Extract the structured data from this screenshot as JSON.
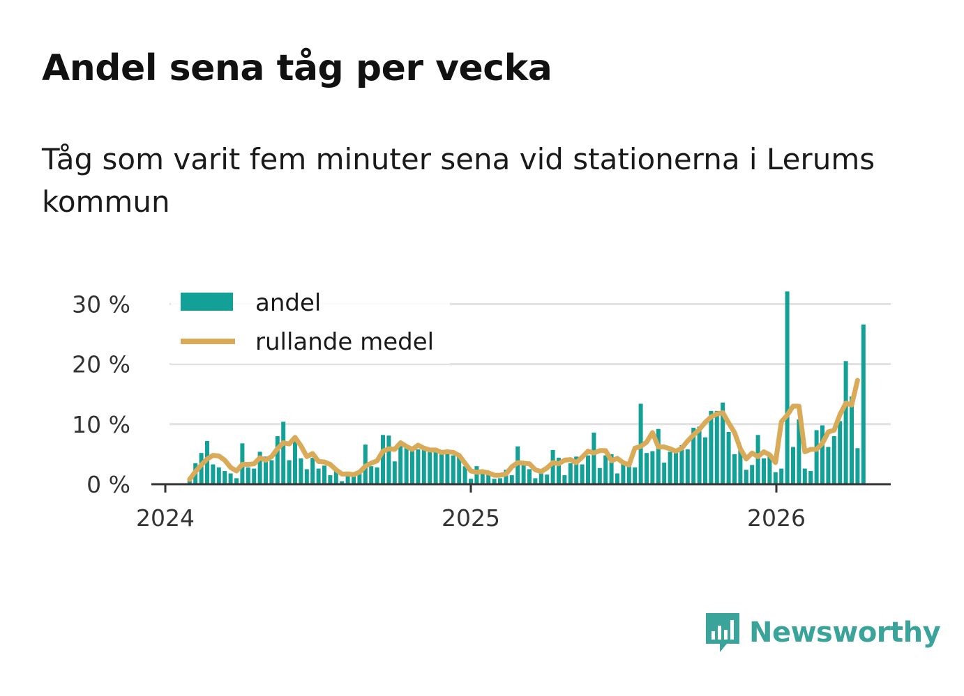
{
  "title": "Andel sena tåg per vecka",
  "subtitle": "Tåg som varit fem minuter sena vid stationerna i Lerums kommun",
  "brand": "Newsworthy",
  "colors": {
    "bar": "#13a197",
    "line": "#d9ab59",
    "grid": "#e1e1e1",
    "axis": "#333333",
    "brand": "#3aa39a"
  },
  "chart_data": {
    "type": "bar",
    "ylim": [
      0,
      32
    ],
    "y_ticks": [
      0,
      10,
      20,
      30
    ],
    "y_tick_labels": [
      "0 %",
      "10 %",
      "20 %",
      "30 %"
    ],
    "x_tick_labels": [
      "2024",
      "2025",
      "2026"
    ],
    "legend": {
      "placement": "top-left",
      "entries": [
        "andel",
        "rullande medel"
      ]
    },
    "grid": "horizontal",
    "weeks_start": "2024-W05",
    "series": [
      {
        "name": "andel",
        "type": "bar",
        "values": [
          0.8,
          3.5,
          5.2,
          7.2,
          3.3,
          2.8,
          2.2,
          1.8,
          1.0,
          6.8,
          2.8,
          2.6,
          5.4,
          4.6,
          4.0,
          8.0,
          10.4,
          4.0,
          8.0,
          4.3,
          2.5,
          4.4,
          2.6,
          3.1,
          1.5,
          2.3,
          0.5,
          2.1,
          1.8,
          1.8,
          6.6,
          3.0,
          2.8,
          8.2,
          8.1,
          3.8,
          6.8,
          6.2,
          5.5,
          5.8,
          6.2,
          5.4,
          5.6,
          5.2,
          5.5,
          4.8,
          4.6,
          3.0,
          0.9,
          3.0,
          2.0,
          1.6,
          0.9,
          1.0,
          2.4,
          1.5,
          6.3,
          3.8,
          2.5,
          1.0,
          2.0,
          1.6,
          5.7,
          4.4,
          1.5,
          3.5,
          4.6,
          3.3,
          4.8,
          8.6,
          2.7,
          4.8,
          5.0,
          1.8,
          3.8,
          3.4,
          2.8,
          13.4,
          5.2,
          5.5,
          9.2,
          3.6,
          5.4,
          5.5,
          6.5,
          5.8,
          9.4,
          9.6,
          7.8,
          12.2,
          12.2,
          13.6,
          8.7,
          5.0,
          6.0,
          2.4,
          3.2,
          8.2,
          4.3,
          4.6,
          2.0,
          2.6,
          32.1,
          6.2,
          10.8,
          2.6,
          2.2,
          9.0,
          9.8,
          6.2,
          8.0,
          10.5,
          20.5,
          14.6,
          6.0,
          26.6
        ]
      },
      {
        "name": "rullande medel",
        "type": "line",
        "values": [
          0.8,
          2.1,
          3.2,
          4.2,
          4.8,
          4.7,
          4.0,
          2.8,
          2.2,
          3.3,
          3.3,
          3.4,
          4.4,
          4.0,
          4.6,
          5.9,
          6.9,
          6.7,
          7.8,
          6.4,
          4.6,
          5.1,
          3.8,
          3.7,
          3.3,
          2.4,
          1.7,
          1.7,
          1.6,
          2.0,
          3.0,
          3.5,
          3.9,
          5.5,
          5.9,
          5.8,
          6.9,
          6.3,
          5.8,
          6.5,
          6.0,
          5.7,
          5.7,
          5.3,
          5.4,
          5.3,
          4.8,
          3.5,
          2.2,
          2.0,
          2.1,
          1.9,
          1.5,
          1.5,
          1.7,
          2.9,
          3.6,
          3.5,
          3.4,
          2.4,
          2.1,
          2.7,
          3.6,
          3.4,
          4.0,
          4.1,
          3.6,
          4.5,
          5.5,
          5.2,
          5.6,
          5.6,
          3.9,
          4.3,
          3.6,
          3.2,
          6.0,
          6.3,
          7.0,
          8.6,
          6.2,
          6.2,
          5.9,
          5.5,
          6.0,
          7.2,
          8.2,
          9.1,
          10.3,
          11.2,
          11.7,
          11.9,
          10.2,
          8.6,
          5.9,
          4.2,
          5.2,
          4.6,
          5.4,
          4.9,
          3.6,
          10.4,
          11.5,
          13.0,
          13.0,
          5.4,
          5.8,
          5.8,
          6.8,
          8.7,
          9.0,
          11.6,
          13.5,
          13.2,
          17.3
        ]
      }
    ]
  }
}
